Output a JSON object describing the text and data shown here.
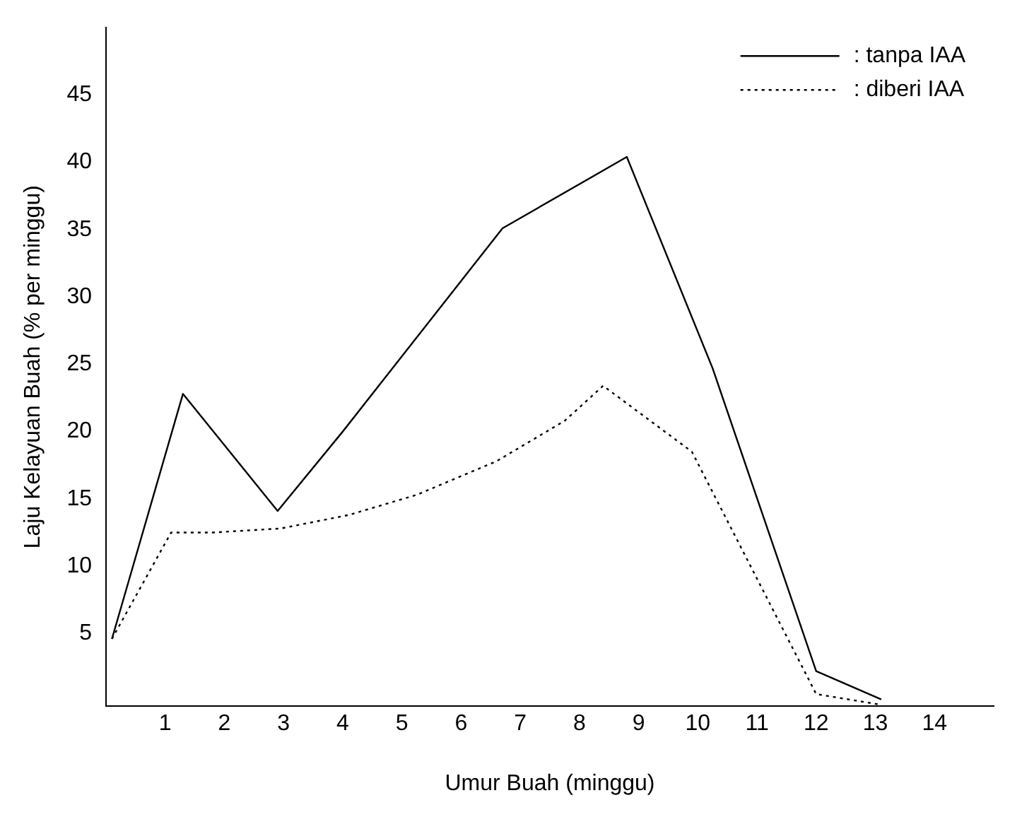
{
  "chart_data": {
    "type": "line",
    "xlabel": "Umur Buah (minggu)",
    "ylabel": "Laju Kelayuan Buah (% per minggu)",
    "xlim": [
      0,
      15
    ],
    "xticks": [
      1,
      2,
      3,
      4,
      5,
      6,
      7,
      8,
      9,
      10,
      11,
      12,
      13,
      14
    ],
    "ylim": [
      -0.4,
      50
    ],
    "yticks": [
      5,
      10,
      15,
      20,
      25,
      30,
      35,
      40,
      45
    ],
    "grid": false,
    "legend": "top right",
    "marker": "none",
    "series": [
      {
        "name": ": tanpa IAA",
        "color": "#000000",
        "line_style": "solid",
        "x": [
          0.1,
          1.3,
          2.9,
          4.0,
          6.7,
          8.8,
          10.25,
          12.0,
          13.1
        ],
        "values": [
          4.6,
          22.8,
          14.1,
          20.0,
          35.1,
          40.4,
          24.7,
          2.2,
          0.1
        ]
      },
      {
        "name": ": diberi IAA",
        "color": "#000000",
        "line_style": "dotted",
        "x": [
          0.1,
          1.1,
          1.8,
          2.95,
          4.1,
          5.25,
          6.6,
          7.75,
          8.4,
          9.9,
          12.0,
          13.1
        ],
        "values": [
          4.6,
          12.5,
          12.5,
          12.8,
          13.8,
          15.3,
          17.8,
          20.8,
          23.4,
          18.5,
          0.5,
          -0.3
        ]
      }
    ]
  }
}
